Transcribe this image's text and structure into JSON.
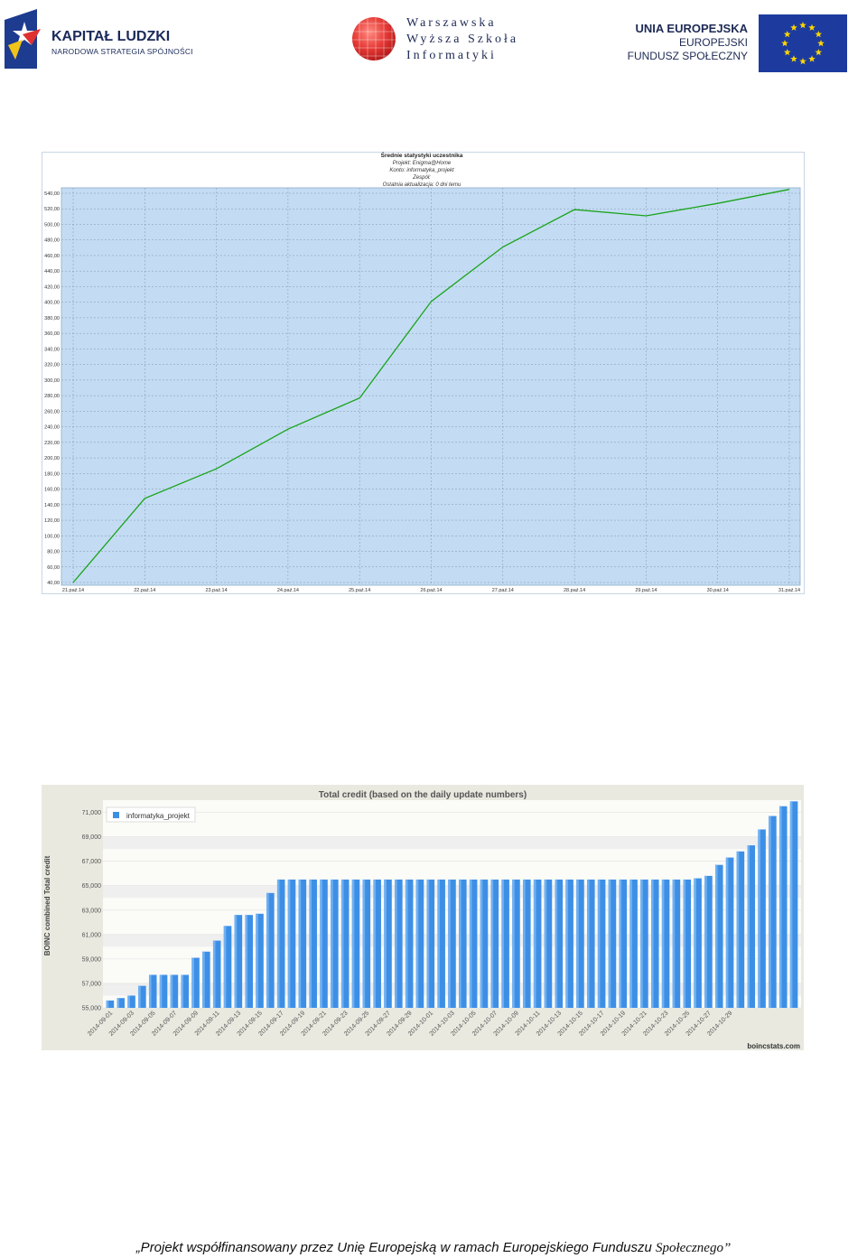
{
  "header": {
    "kapital": {
      "title": "KAPITAŁ LUDZKI",
      "subtitle": "NARODOWA STRATEGIA SPÓJNOŚCI"
    },
    "wwsi": {
      "line1": "Warszawska",
      "line2": "Wyższa Szkoła",
      "line3": "Informatyki"
    },
    "ue": {
      "line1": "UNIA EUROPEJSKA",
      "line2": "EUROPEJSKI",
      "line3": "FUNDUSZ SPOŁECZNY"
    }
  },
  "colors": {
    "plot_bg": "#c3dcf3",
    "line": "#1aa319",
    "bar": "#3d8fe6",
    "bar_dark": "#1f6fd0",
    "chart2_bg": "#e9e9e0"
  },
  "chart_data": [
    {
      "type": "line",
      "title": "Średnie statystyki uczestnika",
      "subtitle_lines": [
        "Projekt: Enigma@Home",
        "Konto: informatyka_projekt",
        "Zespół:",
        "Ostatnia aktualizacja: 0 dni temu"
      ],
      "categories": [
        "21.paź.14",
        "22.paź.14",
        "23.paź.14",
        "24.paź.14",
        "25.paź.14",
        "26.paź.14",
        "27.paź.14",
        "28.paź.14",
        "29.paź.14",
        "30.paź.14",
        "31.paź.14"
      ],
      "values": [
        40,
        148,
        186,
        237,
        277,
        401,
        471,
        519,
        511,
        527,
        545
      ],
      "y_ticks": [
        "40,00",
        "60,00",
        "80,00",
        "100,00",
        "120,00",
        "140,00",
        "160,00",
        "180,00",
        "200,00",
        "220,00",
        "240,00",
        "260,00",
        "280,00",
        "300,00",
        "320,00",
        "340,00",
        "360,00",
        "380,00",
        "400,00",
        "420,00",
        "440,00",
        "460,00",
        "480,00",
        "500,00",
        "520,00",
        "540,00"
      ],
      "ylim": [
        40,
        540
      ],
      "grid": true
    },
    {
      "type": "bar",
      "title": "Total credit  (based on the daily update numbers)",
      "ylabel": "BOINC combined Total credit",
      "legend": "informatyka_projekt",
      "legend_position": "top-left",
      "watermark": "boincstats.com",
      "x_tick_labels": [
        "2014-09-01",
        "2014-09-03",
        "2014-09-05",
        "2014-09-07",
        "2014-09-09",
        "2014-09-11",
        "2014-09-13",
        "2014-09-15",
        "2014-09-17",
        "2014-09-19",
        "2014-09-21",
        "2014-09-23",
        "2014-09-25",
        "2014-09-27",
        "2014-09-29",
        "2014-10-01",
        "2014-10-03",
        "2014-10-05",
        "2014-10-07",
        "2014-10-09",
        "2014-10-11",
        "2014-10-13",
        "2014-10-15",
        "2014-10-17",
        "2014-10-19",
        "2014-10-21",
        "2014-10-23",
        "2014-10-25",
        "2014-10-27",
        "2014-10-29"
      ],
      "values": [
        55600,
        55800,
        56000,
        56800,
        57700,
        57700,
        57700,
        57700,
        59100,
        59600,
        60500,
        61700,
        62600,
        62600,
        62700,
        64400,
        65500,
        65500,
        65500,
        65500,
        65500,
        65500,
        65500,
        65500,
        65500,
        65500,
        65500,
        65500,
        65500,
        65500,
        65500,
        65500,
        65500,
        65500,
        65500,
        65500,
        65500,
        65500,
        65500,
        65500,
        65500,
        65500,
        65500,
        65500,
        65500,
        65500,
        65500,
        65500,
        65500,
        65500,
        65500,
        65500,
        65500,
        65500,
        65500,
        65600,
        65800,
        66700,
        67300,
        67800,
        68300,
        69600,
        70700,
        71500,
        71900
      ],
      "y_ticks": [
        "55,000",
        "57,000",
        "59,000",
        "61,000",
        "63,000",
        "65,000",
        "67,000",
        "69,000",
        "71,000"
      ],
      "ylim": [
        55000,
        72000
      ],
      "grid": true
    }
  ],
  "footer": {
    "text": "„Projekt współfinansowany przez Unię Europejską w ramach Europejskiego Funduszu ",
    "last": "Społecznego”"
  }
}
